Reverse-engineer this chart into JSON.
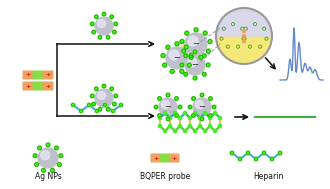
{
  "bg_color": "#ffffff",
  "labels": {
    "ag_nps": "Ag NPs",
    "bqper": "BQPER probe",
    "heparin": "Heparin"
  },
  "colors": {
    "ag_body": "#c0c0cc",
    "ag_shine": "#e8e8f8",
    "ag_dot": "#44ee22",
    "ag_dot_edge": "#229900",
    "arrow": "#111111",
    "probe_orange": "#f0a060",
    "probe_green": "#88dd44",
    "probe_plus": "#cc2200",
    "heparin_blue": "#44aadd",
    "heparin_blue2": "#2266bb",
    "heparin_dot": "#44ee22",
    "heparin_dot_edge": "#229900",
    "hotspot_bg": "#f0d840",
    "hotspot_rim": "#999999",
    "zoom_bg": "#f5e878",
    "zoom_top": "#d8d8e8",
    "spectrum_line": "#6688cc",
    "flat_line": "#44aa44",
    "neg_sign": "#444444",
    "dna_orange": "#f5a050",
    "dna_blue": "#3399cc",
    "dna_green": "#55cc33"
  },
  "layout": {
    "fig_w": 3.3,
    "fig_h": 1.89,
    "dpi": 100
  }
}
